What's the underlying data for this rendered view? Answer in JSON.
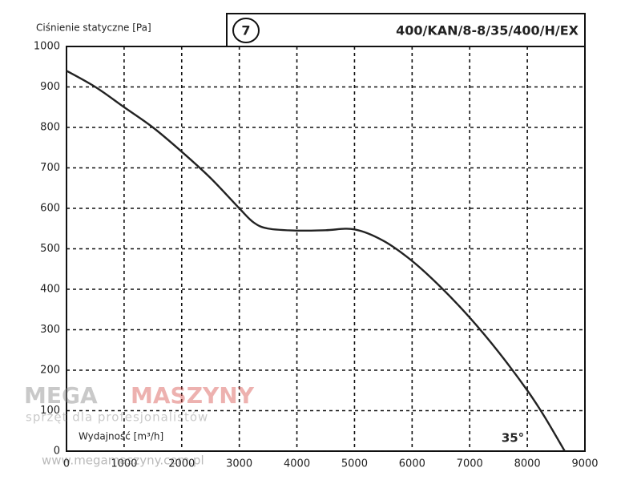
{
  "chart_data": {
    "type": "line",
    "y_label": "Ciśnienie statyczne [Pa]",
    "x_label": "Wydajność [m³/h]",
    "badge": "7",
    "model": "400/KAN/8-8/35/400/H/EX",
    "annotation": "35°",
    "x": [
      0,
      500,
      1000,
      1500,
      2000,
      2500,
      3000,
      3250,
      3500,
      4000,
      4500,
      5000,
      5500,
      6000,
      6500,
      7000,
      7500,
      8000,
      8300,
      8650
    ],
    "values": [
      940,
      900,
      850,
      800,
      740,
      675,
      600,
      565,
      550,
      545,
      546,
      548,
      520,
      470,
      405,
      330,
      245,
      150,
      85,
      0
    ],
    "color": "#222222",
    "xlim": [
      0,
      9000
    ],
    "ylim": [
      0,
      1000
    ],
    "xticks": [
      0,
      1000,
      2000,
      3000,
      4000,
      5000,
      6000,
      7000,
      8000,
      9000
    ],
    "yticks": [
      0,
      100,
      200,
      300,
      400,
      500,
      600,
      700,
      800,
      900,
      1000
    ],
    "grid": true
  },
  "watermark": {
    "brand_left": "MEGA",
    "brand_right": "MASZYNY",
    "tagline": "sprzęt dla profesjonalistów",
    "url": "www.megamaszyny.com.pl"
  }
}
